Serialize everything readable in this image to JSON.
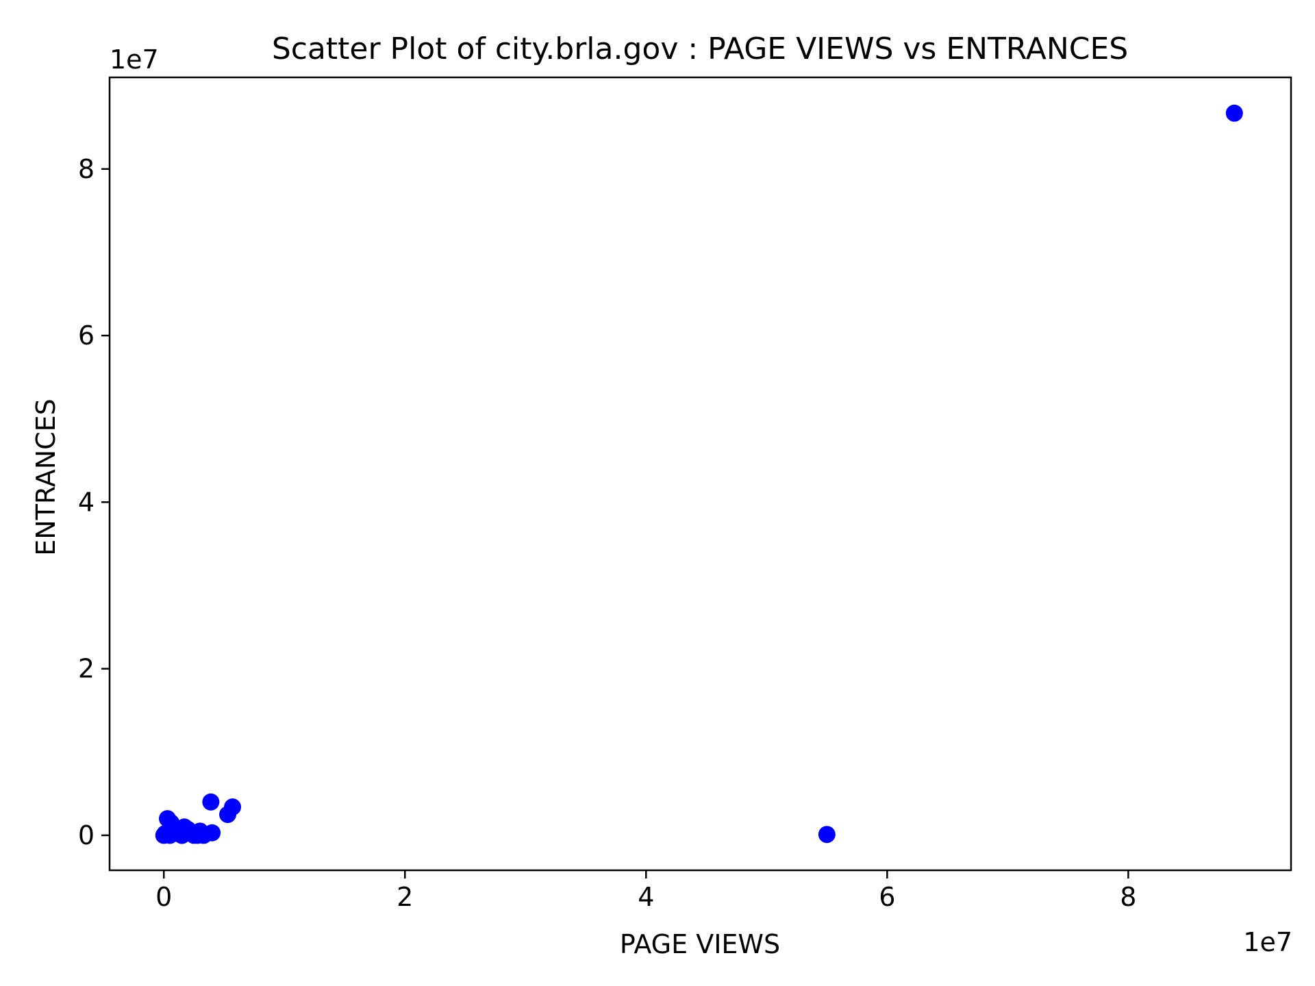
{
  "chart_data": {
    "type": "scatter",
    "title": "Scatter Plot of city.brla.gov : PAGE VIEWS vs ENTRANCES",
    "xlabel": "PAGE VIEWS",
    "ylabel": "ENTRANCES",
    "x_offset_label": "1e7",
    "y_offset_label": "1e7",
    "xlim": [
      -0.45,
      9.35
    ],
    "ylim": [
      -0.42,
      9.1
    ],
    "x_ticks": [
      0,
      2,
      4,
      6,
      8
    ],
    "y_ticks": [
      0,
      2,
      4,
      6,
      8
    ],
    "grid": false,
    "marker_color": "#0000ff",
    "series": [
      {
        "x": [
          0.0,
          0.01,
          0.02,
          0.03,
          0.05,
          0.08,
          0.12,
          0.15,
          0.03,
          0.06,
          0.1,
          0.2,
          0.3,
          0.4,
          0.15,
          0.17,
          0.25,
          0.28,
          0.33,
          0.39,
          0.53,
          0.57,
          5.5,
          8.88
        ],
        "y": [
          0.0,
          0.02,
          0.01,
          0.03,
          0.0,
          0.05,
          0.02,
          0.0,
          0.2,
          0.15,
          0.08,
          0.07,
          0.05,
          0.03,
          0.0,
          0.1,
          0.0,
          0.0,
          0.0,
          0.4,
          0.25,
          0.34,
          0.01,
          8.67
        ]
      }
    ]
  }
}
